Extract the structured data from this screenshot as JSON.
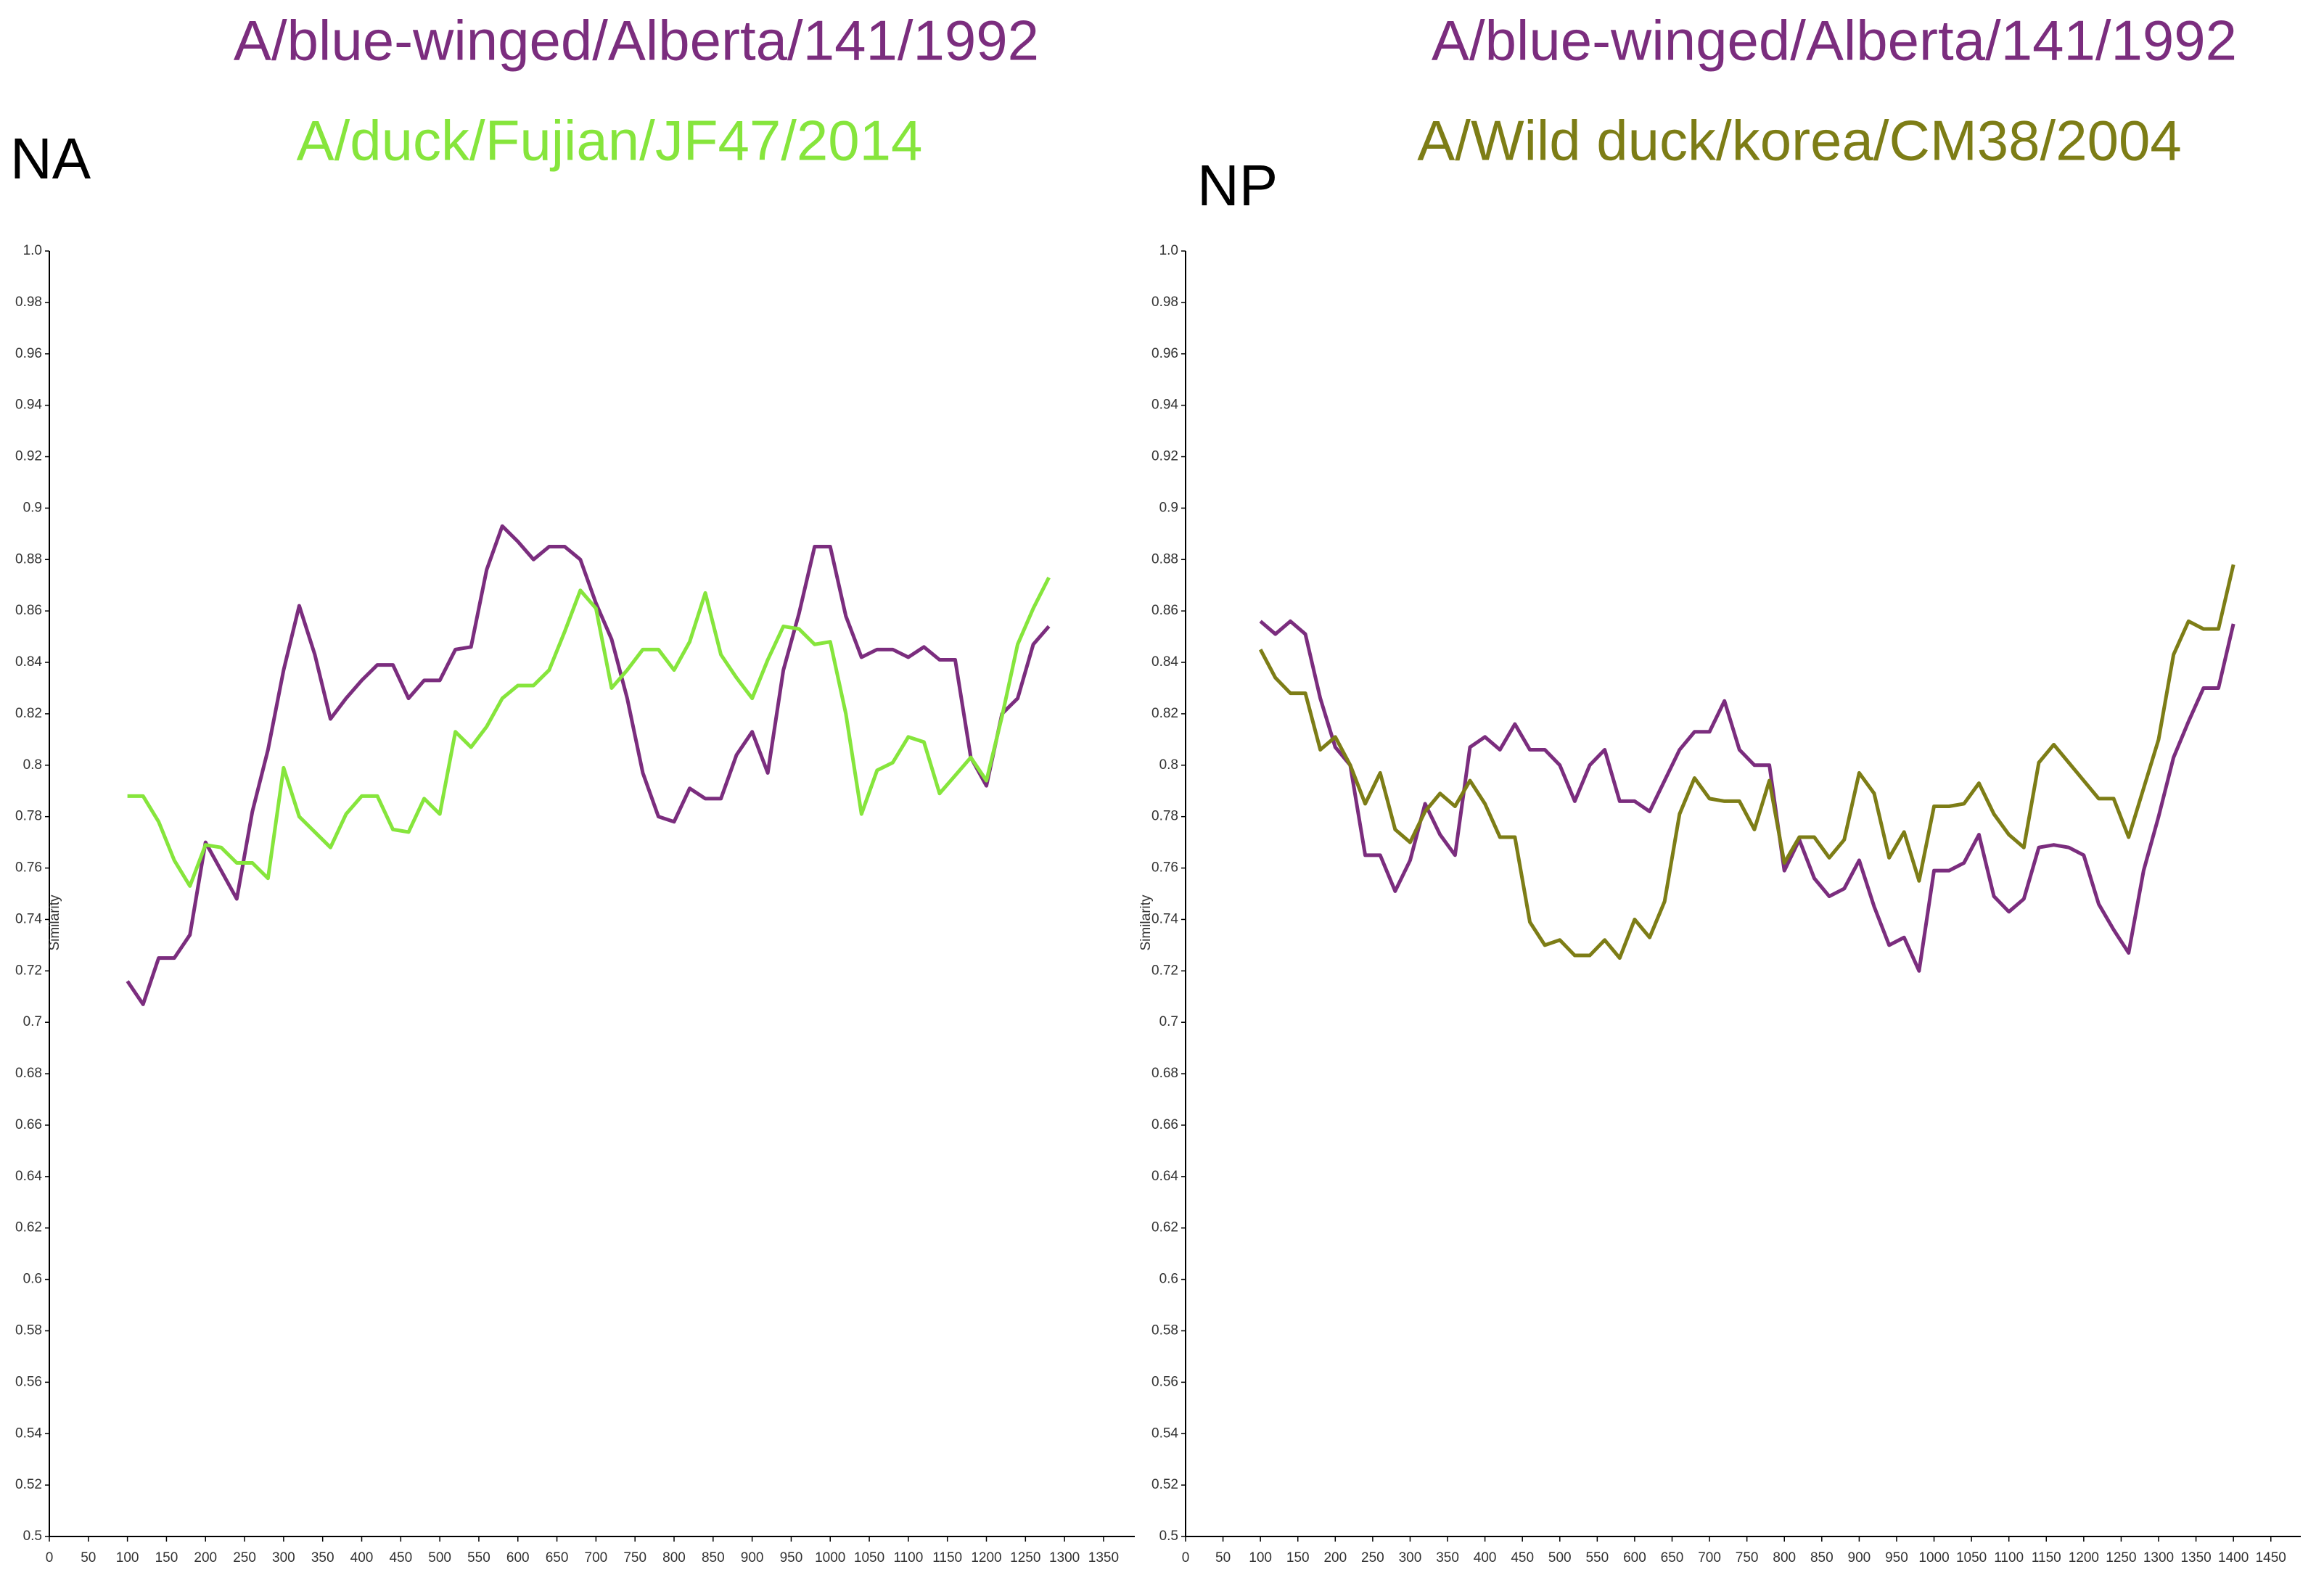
{
  "chart_data": [
    {
      "type": "line",
      "title": "NA",
      "y_label": "Similarity",
      "x": [
        100,
        120,
        140,
        160,
        180,
        200,
        220,
        240,
        260,
        280,
        300,
        320,
        340,
        360,
        380,
        400,
        420,
        440,
        460,
        480,
        500,
        520,
        540,
        560,
        580,
        600,
        620,
        640,
        660,
        680,
        700,
        720,
        740,
        760,
        780,
        800,
        820,
        840,
        860,
        880,
        900,
        920,
        940,
        960,
        980,
        1000,
        1020,
        1040,
        1060,
        1080,
        1100,
        1120,
        1140,
        1160,
        1180,
        1200,
        1220,
        1240,
        1260,
        1280
      ],
      "series": [
        {
          "name": "A/blue-winged/Alberta/141/1992",
          "color": "#7b2d7e",
          "values": [
            0.716,
            0.707,
            0.725,
            0.725,
            0.734,
            0.77,
            0.759,
            0.748,
            0.782,
            0.806,
            0.837,
            0.862,
            0.843,
            0.818,
            0.826,
            0.833,
            0.839,
            0.839,
            0.826,
            0.833,
            0.833,
            0.845,
            0.846,
            0.876,
            0.893,
            0.887,
            0.88,
            0.885,
            0.885,
            0.88,
            0.863,
            0.849,
            0.826,
            0.797,
            0.78,
            0.778,
            0.791,
            0.787,
            0.787,
            0.804,
            0.813,
            0.797,
            0.837,
            0.859,
            0.885,
            0.885,
            0.858,
            0.842,
            0.845,
            0.845,
            0.842,
            0.846,
            0.841,
            0.841,
            0.803,
            0.792,
            0.82,
            0.826,
            0.847,
            0.854
          ]
        },
        {
          "name": "A/duck/Fujian/JF47/2014",
          "color": "#86e53c",
          "values": [
            0.788,
            0.788,
            0.778,
            0.763,
            0.753,
            0.769,
            0.768,
            0.762,
            0.762,
            0.756,
            0.799,
            0.78,
            0.774,
            0.768,
            0.781,
            0.788,
            0.788,
            0.775,
            0.774,
            0.787,
            0.781,
            0.813,
            0.807,
            0.815,
            0.826,
            0.831,
            0.831,
            0.837,
            0.852,
            0.868,
            0.861,
            0.83,
            0.837,
            0.845,
            0.845,
            0.837,
            0.848,
            0.867,
            0.843,
            0.834,
            0.826,
            0.841,
            0.854,
            0.853,
            0.847,
            0.848,
            0.82,
            0.781,
            0.798,
            0.801,
            0.811,
            0.809,
            0.789,
            0.796,
            0.803,
            0.794,
            0.819,
            0.847,
            0.861,
            0.873
          ]
        }
      ],
      "xlim": [
        0,
        1390
      ],
      "ylim": [
        0.5,
        1
      ],
      "xticks": [
        0,
        50,
        100,
        150,
        200,
        250,
        300,
        350,
        400,
        450,
        500,
        550,
        600,
        650,
        700,
        750,
        800,
        850,
        900,
        950,
        1000,
        1050,
        1100,
        1150,
        1200,
        1250,
        1300,
        1350
      ],
      "yticks": [
        0.5,
        0.52,
        0.54,
        0.56,
        0.58,
        0.6,
        0.62,
        0.64,
        0.66,
        0.68,
        0.7,
        0.72,
        0.74,
        0.76,
        0.78,
        0.8,
        0.82,
        0.84,
        0.86,
        0.88,
        0.9,
        0.92,
        0.94,
        0.96,
        0.98,
        {
          "value": 1,
          "label": "1.0"
        }
      ]
    },
    {
      "type": "line",
      "title": "NP",
      "y_label": "Similarity",
      "x": [
        100,
        120,
        140,
        160,
        180,
        200,
        220,
        240,
        260,
        280,
        300,
        320,
        340,
        360,
        380,
        400,
        420,
        440,
        460,
        480,
        500,
        520,
        540,
        560,
        580,
        600,
        620,
        640,
        660,
        680,
        700,
        720,
        740,
        760,
        780,
        800,
        820,
        840,
        860,
        880,
        900,
        920,
        940,
        960,
        980,
        1000,
        1020,
        1040,
        1060,
        1080,
        1100,
        1120,
        1140,
        1160,
        1180,
        1200,
        1220,
        1240,
        1260,
        1280,
        1300,
        1320,
        1340,
        1360,
        1380,
        1400
      ],
      "series": [
        {
          "name": "A/blue-winged/Alberta/141/1992",
          "color": "#7b2d7e",
          "values": [
            0.856,
            0.851,
            0.856,
            0.851,
            0.826,
            0.807,
            0.8,
            0.765,
            0.765,
            0.751,
            0.763,
            0.785,
            0.773,
            0.765,
            0.807,
            0.811,
            0.806,
            0.816,
            0.806,
            0.806,
            0.8,
            0.786,
            0.8,
            0.806,
            0.786,
            0.786,
            0.782,
            0.794,
            0.806,
            0.813,
            0.813,
            0.825,
            0.806,
            0.8,
            0.8,
            0.759,
            0.771,
            0.756,
            0.749,
            0.752,
            0.763,
            0.745,
            0.73,
            0.733,
            0.72,
            0.759,
            0.759,
            0.762,
            0.773,
            0.749,
            0.743,
            0.748,
            0.768,
            0.769,
            0.768,
            0.765,
            0.746,
            0.736,
            0.727,
            0.759,
            0.78,
            0.803,
            0.817,
            0.83,
            0.83,
            0.855
          ]
        },
        {
          "name": "A/Wild duck/korea/CM38/2004",
          "color": "#7d7d16",
          "values": [
            0.845,
            0.834,
            0.828,
            0.828,
            0.806,
            0.811,
            0.8,
            0.785,
            0.797,
            0.775,
            0.77,
            0.782,
            0.789,
            0.784,
            0.794,
            0.785,
            0.772,
            0.772,
            0.739,
            0.73,
            0.732,
            0.726,
            0.726,
            0.732,
            0.725,
            0.74,
            0.733,
            0.747,
            0.781,
            0.795,
            0.787,
            0.786,
            0.786,
            0.775,
            0.794,
            0.762,
            0.772,
            0.772,
            0.764,
            0.771,
            0.797,
            0.789,
            0.764,
            0.774,
            0.755,
            0.784,
            0.784,
            0.785,
            0.793,
            0.781,
            0.773,
            0.768,
            0.801,
            0.808,
            0.801,
            0.794,
            0.787,
            0.787,
            0.772,
            0.791,
            0.81,
            0.843,
            0.856,
            0.853,
            0.853,
            0.878
          ]
        }
      ],
      "xlim": [
        0,
        1490
      ],
      "ylim": [
        0.5,
        1
      ],
      "xticks": [
        0,
        50,
        100,
        150,
        200,
        250,
        300,
        350,
        400,
        450,
        500,
        550,
        600,
        650,
        700,
        750,
        800,
        850,
        900,
        950,
        1000,
        1050,
        1100,
        1150,
        1200,
        1250,
        1300,
        1350,
        1400,
        1450
      ],
      "yticks": [
        0.5,
        0.52,
        0.54,
        0.56,
        0.58,
        0.6,
        0.62,
        0.64,
        0.66,
        0.68,
        0.7,
        0.72,
        0.74,
        0.76,
        0.78,
        0.8,
        0.82,
        0.84,
        0.86,
        0.88,
        0.9,
        0.92,
        0.94,
        0.96,
        0.98,
        {
          "value": 1,
          "label": "1.0"
        }
      ]
    }
  ]
}
